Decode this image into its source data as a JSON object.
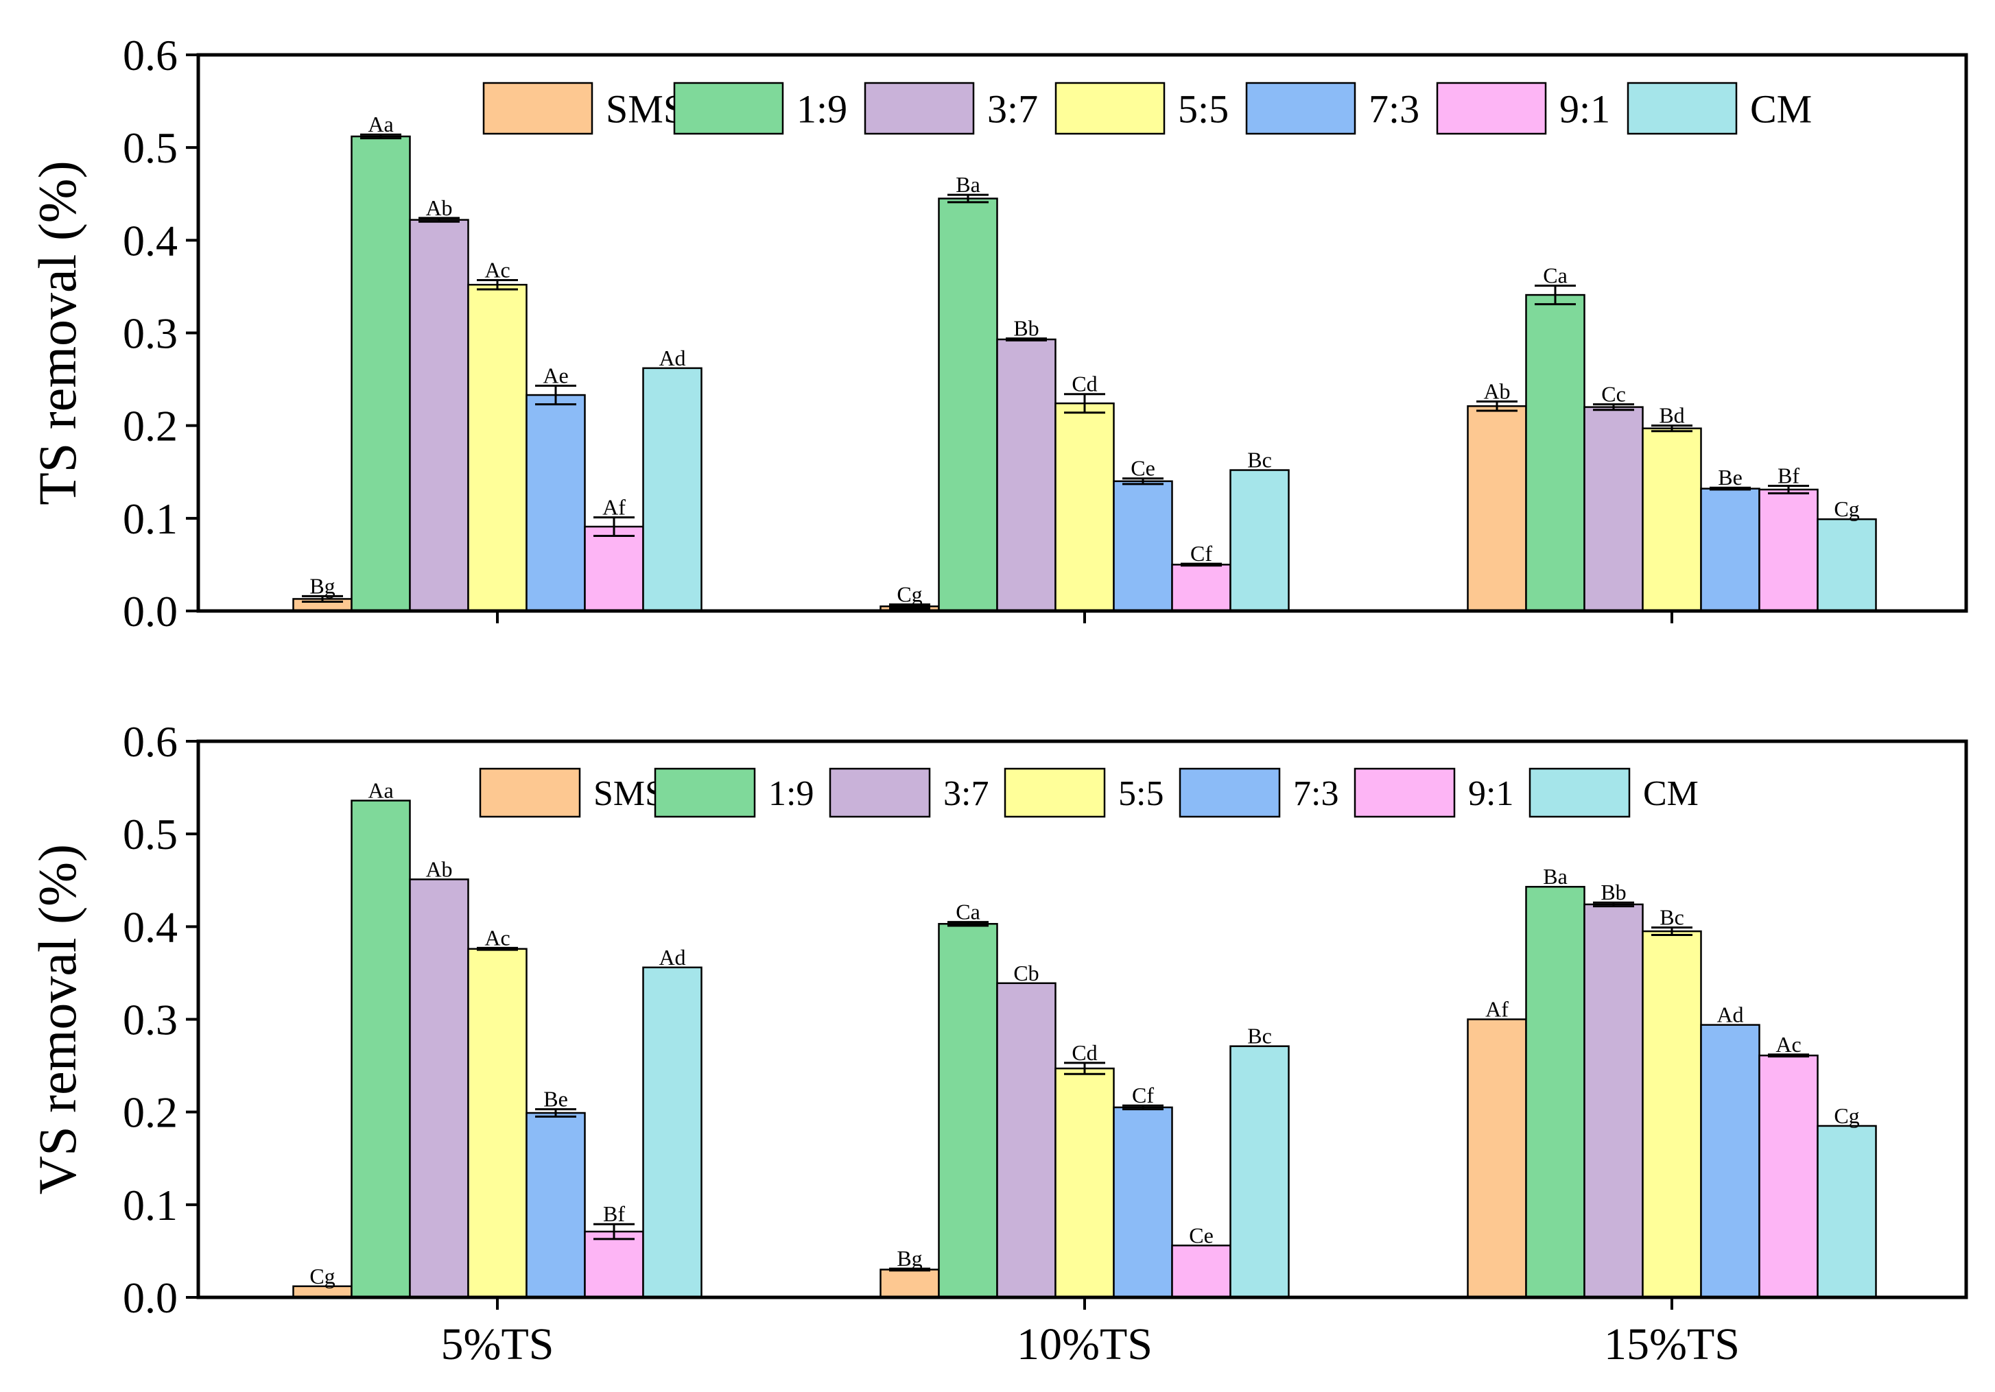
{
  "colors": {
    "SMS": "#FDC891",
    "1:9": "#7FD99A",
    "3:7": "#C9B2D9",
    "5:5": "#FFFF99",
    "7:3": "#8BBBF7",
    "9:1": "#FDB5F5",
    "CM": "#A5E5EA"
  },
  "chart_data": [
    {
      "type": "bar",
      "id": "ts",
      "ylabel": "TS removal (%)",
      "xlabel": "",
      "ylim": [
        0,
        0.6
      ],
      "yticks": [
        "0.0",
        "0.1",
        "0.2",
        "0.3",
        "0.4",
        "0.5",
        "0.6"
      ],
      "categories": [
        "5%TS",
        "10%TS",
        "15%TS"
      ],
      "show_category_labels": false,
      "legend": [
        "SMS",
        "1:9",
        "3:7",
        "5:5",
        "7:3",
        "9:1",
        "CM"
      ],
      "legend_position": "top",
      "series": [
        {
          "name": "SMS",
          "values": [
            0.013,
            0.005,
            0.221
          ],
          "errors": [
            0.003,
            0.002,
            0.005
          ],
          "labels": [
            "Bg",
            "Cg",
            "Ab"
          ]
        },
        {
          "name": "1:9",
          "values": [
            0.512,
            0.445,
            0.341
          ],
          "errors": [
            0.002,
            0.004,
            0.01
          ],
          "labels": [
            "Aa",
            "Ba",
            "Ca"
          ]
        },
        {
          "name": "3:7",
          "values": [
            0.422,
            0.293,
            0.22
          ],
          "errors": [
            0.002,
            0.001,
            0.003
          ],
          "labels": [
            "Ab",
            "Bb",
            "Cc"
          ]
        },
        {
          "name": "5:5",
          "values": [
            0.352,
            0.224,
            0.197
          ],
          "errors": [
            0.005,
            0.01,
            0.003
          ],
          "labels": [
            "Ac",
            "Cd",
            "Bd"
          ]
        },
        {
          "name": "7:3",
          "values": [
            0.233,
            0.14,
            0.132
          ],
          "errors": [
            0.01,
            0.003,
            0.001
          ],
          "labels": [
            "Ae",
            "Ce",
            "Be"
          ]
        },
        {
          "name": "9:1",
          "values": [
            0.091,
            0.05,
            0.131
          ],
          "errors": [
            0.01,
            0.001,
            0.004
          ],
          "labels": [
            "Af",
            "Cf",
            "Bf"
          ]
        },
        {
          "name": "CM",
          "values": [
            0.262,
            0.152,
            0.099
          ],
          "errors": [
            0,
            0,
            0
          ],
          "labels": [
            "Ad",
            "Bc",
            "Cg"
          ]
        }
      ]
    },
    {
      "type": "bar",
      "id": "vs",
      "ylabel": "VS removal (%)",
      "xlabel": "",
      "ylim": [
        0,
        0.6
      ],
      "yticks": [
        "0.0",
        "0.1",
        "0.2",
        "0.3",
        "0.4",
        "0.5",
        "0.6"
      ],
      "categories": [
        "5%TS",
        "10%TS",
        "15%TS"
      ],
      "show_category_labels": true,
      "legend": [
        "SMS",
        "1:9",
        "3:7",
        "5:5",
        "7:3",
        "9:1",
        "CM"
      ],
      "legend_position": "top",
      "series": [
        {
          "name": "SMS",
          "values": [
            0.012,
            0.03,
            0.3
          ],
          "errors": [
            0,
            0.001,
            0
          ],
          "labels": [
            "Cg",
            "Bg",
            "Af"
          ]
        },
        {
          "name": "1:9",
          "values": [
            0.536,
            0.403,
            0.443
          ],
          "errors": [
            0,
            0.002,
            0
          ],
          "labels": [
            "Aa",
            "Ca",
            "Ba"
          ]
        },
        {
          "name": "3:7",
          "values": [
            0.451,
            0.339,
            0.424
          ],
          "errors": [
            0,
            0,
            0.002
          ],
          "labels": [
            "Ab",
            "Cb",
            "Bb"
          ]
        },
        {
          "name": "5:5",
          "values": [
            0.376,
            0.247,
            0.395
          ],
          "errors": [
            0.001,
            0.006,
            0.004
          ],
          "labels": [
            "Ac",
            "Cd",
            "Bc"
          ]
        },
        {
          "name": "7:3",
          "values": [
            0.199,
            0.205,
            0.294
          ],
          "errors": [
            0.004,
            0.002,
            0
          ],
          "labels": [
            "Be",
            "Cf",
            "Ad"
          ]
        },
        {
          "name": "9:1",
          "values": [
            0.071,
            0.056,
            0.261
          ],
          "errors": [
            0.008,
            0,
            0.001
          ],
          "labels": [
            "Bf",
            "Ce",
            "Ac"
          ]
        },
        {
          "name": "CM",
          "values": [
            0.356,
            0.271,
            0.185
          ],
          "errors": [
            0,
            0,
            0
          ],
          "labels": [
            "Ad",
            "Bc",
            "Cg"
          ]
        }
      ]
    }
  ]
}
